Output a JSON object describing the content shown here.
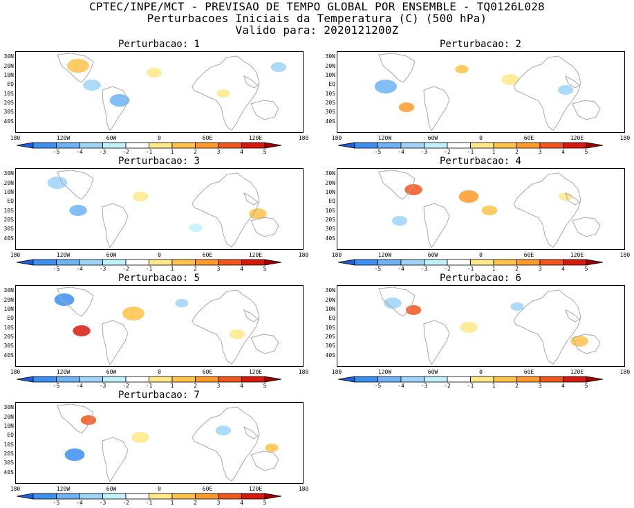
{
  "header": {
    "line1": "CPTEC/INPE/MCT - PREVISAO DE TEMPO GLOBAL POR ENSEMBLE - TQ0126L028",
    "line2": "Perturbacoes Iniciais da Temperatura (C) (500 hPa)",
    "line3": "Valido para: 2020121200Z"
  },
  "lat_labels": [
    "30N",
    "20N",
    "10N",
    "EQ",
    "10S",
    "20S",
    "30S",
    "40S"
  ],
  "lon_labels": [
    "180",
    "120W",
    "60W",
    "0",
    "60E",
    "120E",
    "180"
  ],
  "colorbar": {
    "ticks": [
      "-5",
      "-4",
      "-3",
      "-2",
      "-1",
      "1",
      "2",
      "3",
      "4",
      "5"
    ],
    "colors": [
      "#1f5fd8",
      "#3d8ff0",
      "#6fb3f5",
      "#9fd3f7",
      "#bff2fb",
      "#ffffff",
      "#ffe98a",
      "#ffc24a",
      "#ff9a2a",
      "#f2561d",
      "#d61a10",
      "#a00000"
    ]
  },
  "panels": [
    {
      "title": "Perturbacao: 1"
    },
    {
      "title": "Perturbacao: 2"
    },
    {
      "title": "Perturbacao: 3"
    },
    {
      "title": "Perturbacao: 4"
    },
    {
      "title": "Perturbacao: 5"
    },
    {
      "title": "Perturbacao: 6"
    },
    {
      "title": "Perturbacao: 7"
    }
  ]
}
